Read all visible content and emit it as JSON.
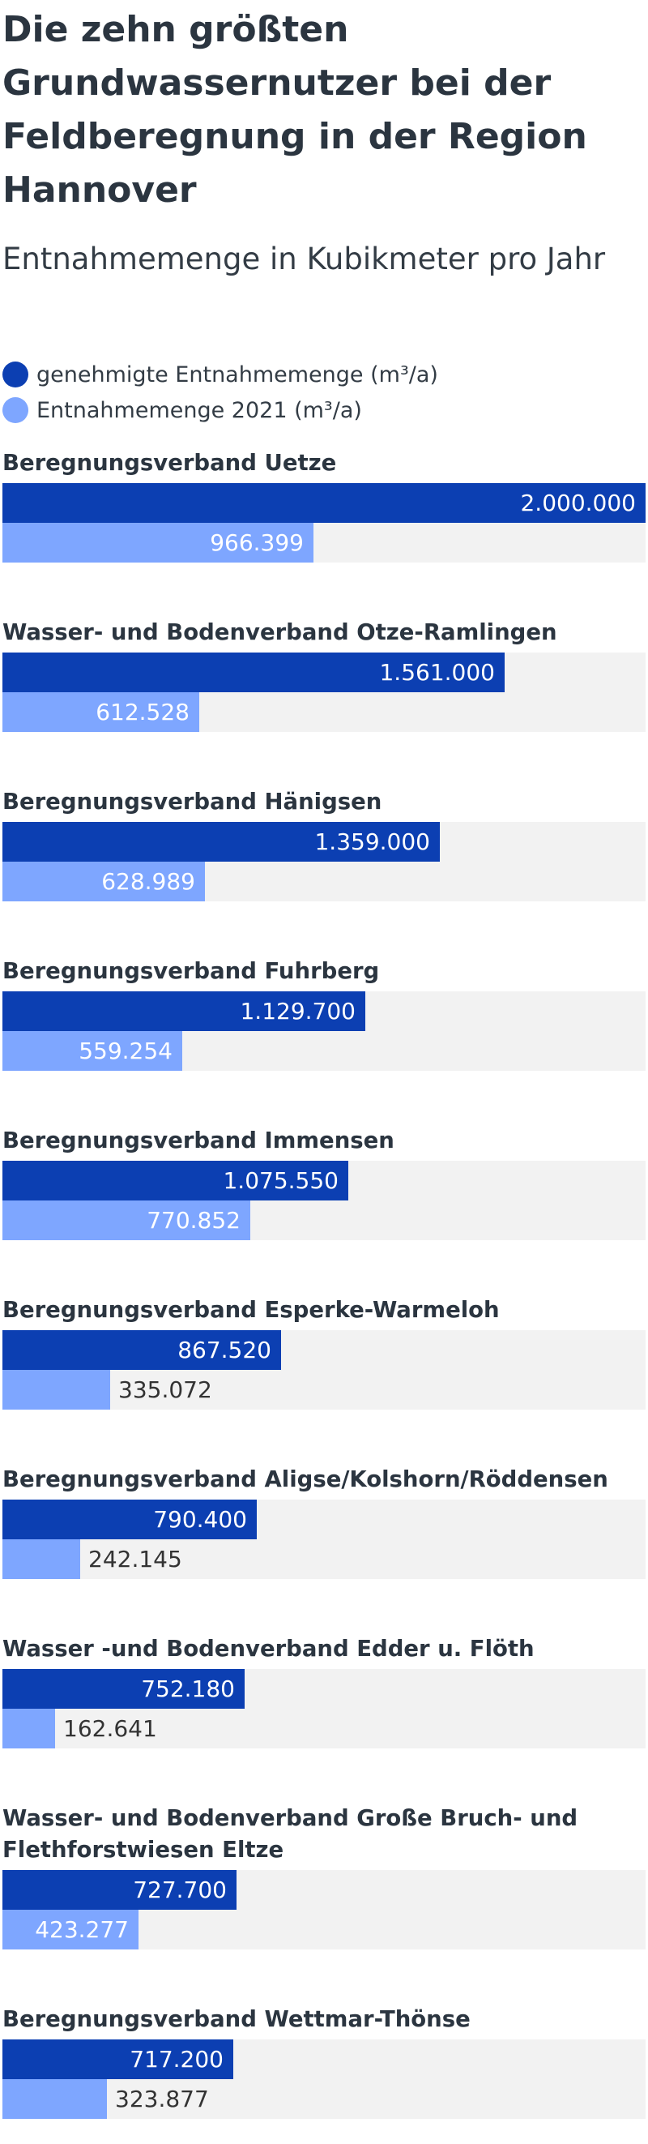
{
  "chart_data": {
    "type": "bar",
    "orientation": "horizontal",
    "title": "Die zehn größten Grundwassernutzer bei der Feldberegnung in der Region Hannover",
    "subtitle": "Entnahmemenge in Kubikmeter pro Jahr",
    "xlim": [
      0,
      2000000
    ],
    "grid": false,
    "legend_position": "top-left",
    "categories": [
      "Beregnungsverband Uetze",
      "Wasser- und Bodenverband Otze-Ramlingen",
      "Beregnungsverband Hänigsen",
      "Beregnungsverband Fuhrberg",
      "Beregnungsverband Immensen",
      "Beregnungsverband Esperke-Warmeloh",
      "Beregnungsverband Aligse/Kolshorn/Röddensen",
      "Wasser -und Bodenverband Edder u. Flöth",
      "Wasser- und Bodenverband Große Bruch- und Flethforstwiesen Eltze",
      "Beregnungsverband Wettmar-Thönse"
    ],
    "series": [
      {
        "name": "genehmigte Entnahmemenge (m³/a)",
        "color": "#0c3fb2",
        "values": [
          2000000,
          1561000,
          1359000,
          1129700,
          1075550,
          867520,
          790400,
          752180,
          727700,
          717200
        ],
        "labels": [
          "2.000.000",
          "1.561.000",
          "1.359.000",
          "1.129.700",
          "1.075.550",
          "867.520",
          "790.400",
          "752.180",
          "727.700",
          "717.200"
        ]
      },
      {
        "name": "Entnahmemenge 2021 (m³/a)",
        "color": "#7ea6ff",
        "values": [
          966399,
          612528,
          628989,
          559254,
          770852,
          335072,
          242145,
          162641,
          423277,
          323877
        ],
        "labels": [
          "966.399",
          "612.528",
          "628.989",
          "559.254",
          "770.852",
          "335.072",
          "242.145",
          "162.641",
          "423.277",
          "323.877"
        ]
      }
    ]
  }
}
